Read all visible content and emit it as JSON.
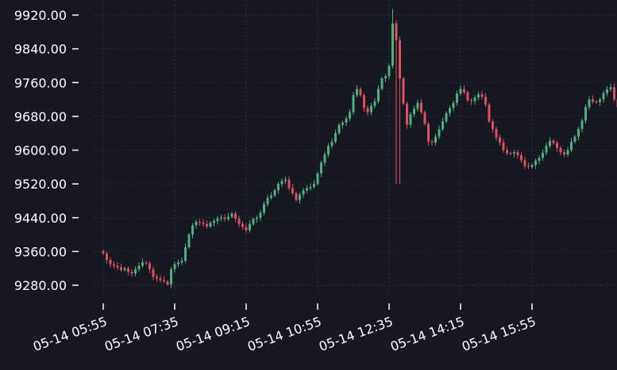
{
  "chart_data": {
    "type": "candlestick",
    "title": "",
    "xlabel": "",
    "ylabel": "",
    "ylim": [
      9248,
      9935
    ],
    "yticks": [
      "9280.00",
      "9360.00",
      "9440.00",
      "9520.00",
      "9600.00",
      "9680.00",
      "9760.00",
      "9840.00",
      "9920.00"
    ],
    "xticks": [
      "05-14 05:55",
      "05-14 07:35",
      "05-14 09:15",
      "05-14 10:55",
      "05-14 12:35",
      "05-14 14:15",
      "05-14 15:55"
    ],
    "grid": true,
    "interval_minutes": 5,
    "start_time": "05-14 05:55",
    "colors": {
      "background": "#151821",
      "up": "#4fae80",
      "down": "#dd4f63",
      "text": "#ffffff",
      "grid": "#2a2f3b"
    },
    "closes": [
      9355,
      9340,
      9330,
      9326,
      9322,
      9316,
      9320,
      9312,
      9308,
      9318,
      9326,
      9334,
      9332,
      9318,
      9300,
      9296,
      9292,
      9289,
      9282,
      9318,
      9330,
      9334,
      9338,
      9370,
      9400,
      9422,
      9430,
      9428,
      9425,
      9419,
      9428,
      9432,
      9438,
      9440,
      9437,
      9442,
      9450,
      9438,
      9425,
      9418,
      9410,
      9425,
      9437,
      9440,
      9452,
      9472,
      9487,
      9492,
      9505,
      9520,
      9527,
      9530,
      9510,
      9498,
      9482,
      9495,
      9505,
      9510,
      9513,
      9520,
      9545,
      9570,
      9590,
      9610,
      9620,
      9640,
      9660,
      9665,
      9675,
      9690,
      9730,
      9745,
      9730,
      9700,
      9690,
      9705,
      9715,
      9745,
      9770,
      9775,
      9800,
      9900,
      9860,
      9770,
      9710,
      9660,
      9685,
      9698,
      9712,
      9690,
      9662,
      9620,
      9618,
      9632,
      9650,
      9668,
      9688,
      9700,
      9712,
      9734,
      9745,
      9737,
      9718,
      9716,
      9725,
      9732,
      9726,
      9708,
      9668,
      9650,
      9630,
      9618,
      9600,
      9593,
      9592,
      9595,
      9588,
      9576,
      9562,
      9560,
      9565,
      9575,
      9582,
      9594,
      9610,
      9622,
      9617,
      9605,
      9595,
      9590,
      9600,
      9620,
      9632,
      9650,
      9670,
      9702,
      9720,
      9715,
      9714,
      9720,
      9735,
      9744,
      9749,
      9720,
      9702,
      9700,
      9690,
      9682,
      9688,
      9695,
      9704,
      9712,
      9709
    ]
  }
}
